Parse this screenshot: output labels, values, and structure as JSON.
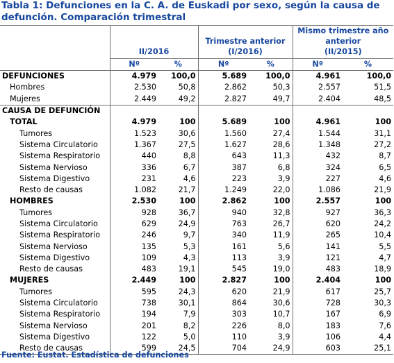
{
  "title": "Tabla 1: Defunciones en la C. A. de Euskadi por sexo, según la causa de defunción. Comparación trimestral",
  "header": {
    "col1": "II/2016",
    "col2_line1": "Trimestre anterior",
    "col2_line2": "(I/2016)",
    "col3_line1": "Mismo trimestre año",
    "col3_line2": "anterior",
    "col3_line3": "(II/2015)",
    "n": "Nº",
    "pct": "%"
  },
  "defunciones": {
    "label": "DEFUNCIONES",
    "values": [
      "4.979",
      "100,0",
      "5.689",
      "100,0",
      "4.961",
      "100,0"
    ],
    "rows": [
      {
        "label": "Hombres",
        "values": [
          "2.530",
          "50,8",
          "2.862",
          "50,3",
          "2.557",
          "51,5"
        ]
      },
      {
        "label": "Mujeres",
        "values": [
          "2.449",
          "49,2",
          "2.827",
          "49,7",
          "2.404",
          "48,5"
        ]
      }
    ]
  },
  "causa_label": "CAUSA DE DEFUNCIÓN",
  "groups": [
    {
      "label": "TOTAL",
      "values": [
        "4.979",
        "100",
        "5.689",
        "100",
        "4.961",
        "100"
      ],
      "rows": [
        {
          "label": "Tumores",
          "values": [
            "1.523",
            "30,6",
            "1.560",
            "27,4",
            "1.544",
            "31,1"
          ]
        },
        {
          "label": "Sistema Circulatorio",
          "values": [
            "1.367",
            "27,5",
            "1.627",
            "28,6",
            "1.348",
            "27,2"
          ]
        },
        {
          "label": "Sistema Respiratorio",
          "values": [
            "440",
            "8,8",
            "643",
            "11,3",
            "432",
            "8,7"
          ]
        },
        {
          "label": "Sistema Nervioso",
          "values": [
            "336",
            "6,7",
            "387",
            "6,8",
            "324",
            "6,5"
          ]
        },
        {
          "label": "Sistema Digestivo",
          "values": [
            "231",
            "4,6",
            "223",
            "3,9",
            "227",
            "4,6"
          ]
        },
        {
          "label": "Resto de causas",
          "values": [
            "1.082",
            "21,7",
            "1.249",
            "22,0",
            "1.086",
            "21,9"
          ]
        }
      ]
    },
    {
      "label": "HOMBRES",
      "values": [
        "2.530",
        "100",
        "2.862",
        "100",
        "2.557",
        "100"
      ],
      "rows": [
        {
          "label": "Tumores",
          "values": [
            "928",
            "36,7",
            "940",
            "32,8",
            "927",
            "36,3"
          ]
        },
        {
          "label": "Sistema Circulatorio",
          "values": [
            "629",
            "24,9",
            "763",
            "26,7",
            "620",
            "24,2"
          ]
        },
        {
          "label": "Sistema Respiratorio",
          "values": [
            "246",
            "9,7",
            "340",
            "11,9",
            "265",
            "10,4"
          ]
        },
        {
          "label": "Sistema Nervioso",
          "values": [
            "135",
            "5,3",
            "161",
            "5,6",
            "141",
            "5,5"
          ]
        },
        {
          "label": "Sistema Digestivo",
          "values": [
            "109",
            "4,3",
            "113",
            "3,9",
            "121",
            "4,7"
          ]
        },
        {
          "label": "Resto de causas",
          "values": [
            "483",
            "19,1",
            "545",
            "19,0",
            "483",
            "18,9"
          ]
        }
      ]
    },
    {
      "label": "MUJERES",
      "values": [
        "2.449",
        "100",
        "2.827",
        "100",
        "2.404",
        "100"
      ],
      "rows": [
        {
          "label": "Tumores",
          "values": [
            "595",
            "24,3",
            "620",
            "21,9",
            "617",
            "25,7"
          ]
        },
        {
          "label": "Sistema Circulatorio",
          "values": [
            "738",
            "30,1",
            "864",
            "30,6",
            "728",
            "30,3"
          ]
        },
        {
          "label": "Sistema Respiratorio",
          "values": [
            "194",
            "7,9",
            "303",
            "10,7",
            "167",
            "6,9"
          ]
        },
        {
          "label": "Sistema Nervioso",
          "values": [
            "201",
            "8,2",
            "226",
            "8,0",
            "183",
            "7,6"
          ]
        },
        {
          "label": "Sistema Digestivo",
          "values": [
            "122",
            "5,0",
            "110",
            "3,9",
            "106",
            "4,4"
          ]
        },
        {
          "label": "Resto de causas",
          "values": [
            "599",
            "24,5",
            "704",
            "24,9",
            "603",
            "25,1"
          ]
        }
      ]
    }
  ],
  "footer": "Fuente: Eustat. Estadística de defunciones",
  "colors": {
    "accent": "#17479e",
    "text": "#000000",
    "rule": "#6d6d6d"
  }
}
